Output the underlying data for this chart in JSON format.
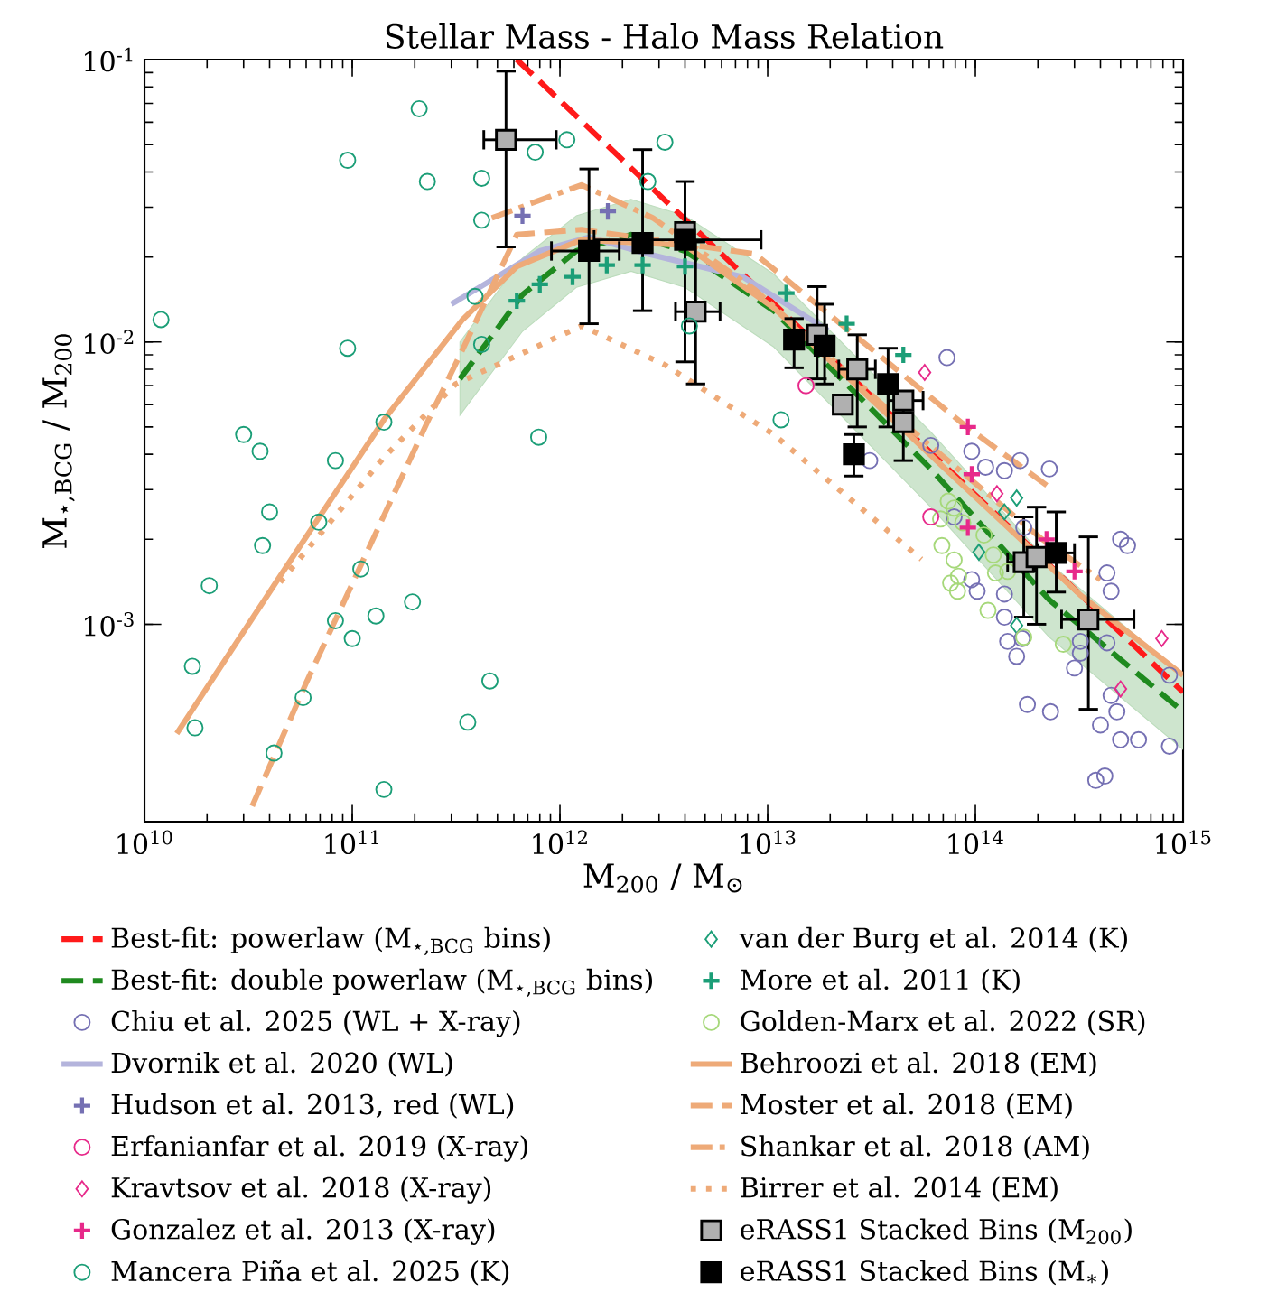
{
  "chart_data": {
    "type": "scatter",
    "title": "Stellar Mass - Halo Mass Relation",
    "xlabel": "M$_{200}$ / M$_{⊙}$",
    "ylabel": "M$_{⋆,BCG}$ / M$_{200}$",
    "log": "xy",
    "xlim": [
      10000000000.0,
      1000000000000000.0
    ],
    "ylim": [
      0.0002,
      0.1
    ],
    "xticks": [
      {
        "value": 10000000000.0,
        "label": "10$^{10}$"
      },
      {
        "value": 100000000000.0,
        "label": "10$^{11}$"
      },
      {
        "value": 1000000000000.0,
        "label": "10$^{12}$"
      },
      {
        "value": 10000000000000.0,
        "label": "10$^{13}$"
      },
      {
        "value": 100000000000000.0,
        "label": "10$^{14}$"
      },
      {
        "value": 1000000000000000.0,
        "label": "10$^{15}$"
      }
    ],
    "yticks": [
      {
        "value": 0.001,
        "label": "10$^{-3}$"
      },
      {
        "value": 0.01,
        "label": "10$^{-2}$"
      },
      {
        "value": 0.1,
        "label": "10$^{-1}$"
      }
    ],
    "legend": "bottom",
    "series": [
      {
        "name": "Best-fit: powerlaw (M$_{⋆,BCG}$ bins)",
        "type": "line",
        "color": "#ff1a1a",
        "line_style": "dashed",
        "marker": "none",
        "x": [
          620000000000.0,
          1000000000000000.0
        ],
        "values": [
          0.1,
          0.000575
        ]
      },
      {
        "name": "Best-fit: double powerlaw (M$_{⋆,BCG}$ bins)",
        "type": "line",
        "color": "#1f8a1f",
        "line_style": "dashed",
        "marker": "none",
        "x": [
          330000000000.0,
          660000000000.0,
          1200000000000.0,
          2200000000000.0,
          4000000000000.0,
          10700000000000.0,
          61000000000000.0,
          227000000000000.0,
          1000000000000000.0
        ],
        "values": [
          0.0074,
          0.0147,
          0.021,
          0.024,
          0.021,
          0.0129,
          0.00355,
          0.00122,
          0.00049
        ],
        "upper": [
          0.01,
          0.0198,
          0.028,
          0.032,
          0.028,
          0.0174,
          0.0048,
          0.00165,
          0.00066
        ],
        "lower": [
          0.0055,
          0.0109,
          0.0156,
          0.0178,
          0.0156,
          0.0096,
          0.0026,
          0.0009,
          0.00036
        ]
      },
      {
        "name": "Chiu et al. 2025 (WL + X-ray)",
        "color": "#7570b3",
        "marker": "circle",
        "x": [
          73000000000000.0,
          61000000000000.0,
          31000000000000.0,
          96000000000000.0,
          112000000000000.0,
          164000000000000.0,
          227000000000000.0,
          138000000000000.0,
          79000000000000.0,
          96000000000000.0,
          102000000000000.0,
          138000000000000.0,
          138000000000000.0,
          143000000000000.0,
          158000000000000.0,
          168000000000000.0,
          178000000000000.0,
          230000000000000.0,
          300000000000000.0,
          320000000000000.0,
          380000000000000.0,
          420000000000000.0,
          400000000000000.0,
          450000000000000.0,
          480000000000000.0,
          500000000000000.0,
          610000000000000.0,
          500000000000000.0,
          540000000000000.0,
          430000000000000.0,
          450000000000000.0,
          430000000000000.0,
          320000000000000.0,
          860000000000000.0,
          860000000000000.0,
          171000000000000.0
        ],
        "values": [
          0.0088,
          0.0043,
          0.0038,
          0.0041,
          0.0036,
          0.0038,
          0.00355,
          0.0035,
          0.0024,
          0.00144,
          0.00131,
          0.00128,
          0.00106,
          0.00087,
          0.00077,
          0.00089,
          0.00052,
          0.00049,
          0.0007,
          0.00079,
          0.00028,
          0.00029,
          0.00044,
          0.00056,
          0.00049,
          0.00039,
          0.00039,
          0.002,
          0.0019,
          0.00152,
          0.00131,
          0.00086,
          0.00087,
          0.00066,
          0.00037,
          0.0022
        ]
      },
      {
        "name": "Dvornik et al. 2020 (WL)",
        "type": "line",
        "color": "#b4b4dc",
        "line_style": "solid",
        "marker": "none",
        "x": [
          300000000000.0,
          510000000000.0,
          800000000000.0,
          1380000000000.0,
          2650000000000.0,
          7600000000000.0,
          19500000000000.0
        ],
        "values": [
          0.0136,
          0.0172,
          0.021,
          0.0235,
          0.0205,
          0.017,
          0.011
        ]
      },
      {
        "name": "Hudson et al. 2013, red (WL)",
        "color": "#7570b3",
        "marker": "cross",
        "x": [
          660000000000.0,
          1700000000000.0
        ],
        "values": [
          0.028,
          0.029
        ]
      },
      {
        "name": "Erfanianfar et al. 2019 (X-ray)",
        "color": "#e7298a",
        "marker": "circle",
        "x": [
          15300000000000.0,
          61000000000000.0
        ],
        "values": [
          0.007,
          0.0024
        ]
      },
      {
        "name": "Kravtsov et al. 2018 (X-ray)",
        "color": "#e7298a",
        "marker": "diamond",
        "x": [
          57000000000000.0,
          127000000000000.0,
          500000000000000.0,
          790000000000000.0
        ],
        "values": [
          0.0078,
          0.0029,
          0.00059,
          0.00089
        ]
      },
      {
        "name": "Gonzalez et al. 2013 (X-ray)",
        "color": "#e7298a",
        "marker": "cross",
        "x": [
          92000000000000.0,
          96000000000000.0,
          92000000000000.0,
          220000000000000.0,
          300000000000000.0
        ],
        "values": [
          0.005,
          0.0034,
          0.0022,
          0.002,
          0.00154
        ]
      },
      {
        "name": "Mancera Piña et al. 2025 (K)",
        "color": "#1b9e77",
        "marker": "circle",
        "x": [
          12000000000.0,
          210000000000.0,
          95000000000.0,
          230000000000.0,
          420000000000.0,
          420000000000.0,
          760000000000.0,
          1080000000000.0,
          390000000000.0,
          420000000000.0,
          95000000000.0,
          142000000000.0,
          30000000000.0,
          36000000000.0,
          83000000000.0,
          40000000000.0,
          69000000000.0,
          37000000000.0,
          110000000000.0,
          20500000000.0,
          83000000000.0,
          130000000000.0,
          195000000000.0,
          100000000000.0,
          17000000000.0,
          17500000000.0,
          58000000000.0,
          460000000000.0,
          360000000000.0,
          42000000000.0,
          142000000000.0,
          790000000000.0,
          2650000000000.0,
          3200000000000.0,
          11600000000000.0,
          4200000000000.0
        ],
        "values": [
          0.012,
          0.067,
          0.044,
          0.037,
          0.038,
          0.027,
          0.047,
          0.052,
          0.0145,
          0.0098,
          0.0095,
          0.0052,
          0.0047,
          0.0041,
          0.0038,
          0.0025,
          0.0023,
          0.0019,
          0.00157,
          0.00137,
          0.00103,
          0.00107,
          0.0012,
          0.00089,
          0.00071,
          0.00043,
          0.00055,
          0.00063,
          0.00045,
          0.00035,
          0.00026,
          0.0046,
          0.037,
          0.051,
          0.0053,
          0.0114
        ]
      },
      {
        "name": "van der Burg et al. 2014 (K)",
        "color": "#1b9e77",
        "marker": "diamond",
        "x": [
          158000000000000.0,
          138000000000000.0,
          104000000000000.0,
          158000000000000.0
        ],
        "values": [
          0.0028,
          0.0025,
          0.0018,
          0.00099
        ]
      },
      {
        "name": "More et al. 2011 (K)",
        "color": "#1b9e77",
        "marker": "cross",
        "x": [
          620000000000.0,
          800000000000.0,
          1150000000000.0,
          1680000000000.0,
          2500000000000.0,
          4000000000000.0,
          12300000000000.0,
          24000000000000.0,
          45000000000000.0
        ],
        "values": [
          0.014,
          0.016,
          0.017,
          0.0187,
          0.0187,
          0.0185,
          0.0149,
          0.0116,
          0.009
        ]
      },
      {
        "name": "Golden-Marx et al. 2022 (SR)",
        "color": "#a6d87a",
        "marker": "circle",
        "x": [
          74000000000000.0,
          68000000000000.0,
          79000000000000.0,
          69000000000000.0,
          79000000000000.0,
          83000000000000.0,
          76000000000000.0,
          82000000000000.0,
          110000000000000.0,
          122000000000000.0,
          125000000000000.0,
          87000000000000.0,
          115000000000000.0,
          171000000000000.0,
          265000000000000.0,
          143000000000000.0
        ],
        "values": [
          0.00273,
          0.00236,
          0.00258,
          0.0019,
          0.00169,
          0.00148,
          0.0014,
          0.00131,
          0.00207,
          0.00176,
          0.00152,
          0.00229,
          0.00112,
          0.0009,
          0.00085,
          0.00154
        ]
      },
      {
        "name": "Behroozi et al. 2018 (EM)",
        "type": "line",
        "color": "#eeaa78",
        "line_style": "solid",
        "marker": "none",
        "x": [
          14300000000.0,
          43000000000.0,
          142000000000.0,
          340000000000.0,
          620000000000.0,
          1270000000000.0,
          4000000000000.0,
          10700000000000.0,
          65000000000000.0,
          320000000000000.0,
          1000000000000000.0
        ],
        "values": [
          0.00041,
          0.00141,
          0.0053,
          0.012,
          0.0185,
          0.023,
          0.022,
          0.0132,
          0.0038,
          0.00127,
          0.00066
        ]
      },
      {
        "name": "Moster et al. 2018 (EM)",
        "type": "line",
        "color": "#eeaa78",
        "line_style": "dashed",
        "marker": "none",
        "x": [
          33000000000.0,
          60000000000.0,
          230000000000.0,
          340000000000.0,
          620000000000.0,
          1270000000000.0,
          8700000000000.0,
          91000000000000.0,
          235000000000000.0
        ],
        "values": [
          0.000227,
          0.00062,
          0.0052,
          0.0094,
          0.024,
          0.025,
          0.0205,
          0.005,
          0.003
        ]
      },
      {
        "name": "Shankar et al. 2018 (AM)",
        "type": "line",
        "color": "#eeaa78",
        "line_style": "dashdot",
        "marker": "none",
        "x": [
          470000000000.0,
          1270000000000.0,
          2800000000000.0,
          8700000000000.0,
          43000000000000.0,
          210000000000000.0,
          400000000000000.0
        ],
        "values": [
          0.0275,
          0.036,
          0.0275,
          0.0153,
          0.0053,
          0.002,
          0.00144
        ]
      },
      {
        "name": "Birrer et al. 2014 (EM)",
        "type": "line",
        "color": "#eeaa78",
        "line_style": "dotted",
        "marker": "none",
        "x": [
          45000000000.0,
          142000000000.0,
          315000000000.0,
          1270000000000.0,
          3200000000000.0,
          10700000000000.0,
          55000000000000.0
        ],
        "values": [
          0.00141,
          0.0039,
          0.0071,
          0.0114,
          0.0083,
          0.0047,
          0.0017
        ]
      },
      {
        "name": "eRASS1 Stacked Bins (M$_{200}$)",
        "color": "#b0b0b0",
        "marker": "square",
        "x": [
          550000000000.0,
          4000000000000.0,
          4500000000000.0,
          17300000000000.0,
          27000000000000.0,
          23000000000000.0,
          45000000000000.0,
          45000000000000.0,
          171000000000000.0,
          197000000000000.0,
          350000000000000.0
        ],
        "values": [
          0.052,
          0.0245,
          0.0128,
          0.0106,
          0.008,
          0.006,
          0.0062,
          0.0052,
          0.00166,
          0.00173,
          0.00104
        ],
        "errors": [
          [
            0.0217,
            0.091
          ],
          null,
          [
            0.0071,
            0.0226
          ],
          [
            0.0074,
            0.0157
          ],
          [
            0.005,
            0.0106
          ],
          null,
          null,
          [
            0.0038,
            0.0059
          ],
          [
            0.00106,
            0.0024
          ],
          [
            0.001,
            0.0026
          ],
          [
            0.0005,
            0.00204
          ]
        ],
        "xerrors": [
          [
            430000000000.0,
            960000000000.0
          ],
          null,
          [
            3600000000000.0,
            5900000000000.0
          ],
          null,
          [
            22000000000000.0,
            33000000000000.0
          ],
          null,
          [
            38000000000000.0,
            56000000000000.0
          ],
          null,
          [
            143000000000000.0,
            193000000000000.0
          ],
          null,
          [
            260000000000000.0,
            580000000000000.0
          ]
        ]
      },
      {
        "name": "eRASS1 Stacked Bins (M$_{∗}$)",
        "color": "#000000",
        "marker": "square",
        "x": [
          1380000000000.0,
          2500000000000.0,
          4000000000000.0,
          13400000000000.0,
          18800000000000.0,
          26000000000000.0,
          38000000000000.0,
          245000000000000.0
        ],
        "values": [
          0.021,
          0.0224,
          0.023,
          0.0102,
          0.0097,
          0.004,
          0.0071,
          0.00179
        ],
        "errors": [
          [
            0.0116,
            0.041
          ],
          [
            0.0129,
            0.048
          ],
          [
            0.0085,
            0.037
          ],
          [
            0.0081,
            0.0121
          ],
          [
            0.0071,
            0.0136
          ],
          [
            0.00335,
            0.0047
          ],
          [
            0.005,
            0.0095
          ],
          [
            0.0013,
            0.0025
          ]
        ],
        "xerrors": [
          [
            910000000000.0,
            1930000000000.0
          ],
          null,
          [
            1460000000000.0,
            9300000000000.0
          ],
          null,
          null,
          null,
          null,
          [
            200000000000000.0,
            300000000000000.0
          ]
        ]
      }
    ]
  }
}
